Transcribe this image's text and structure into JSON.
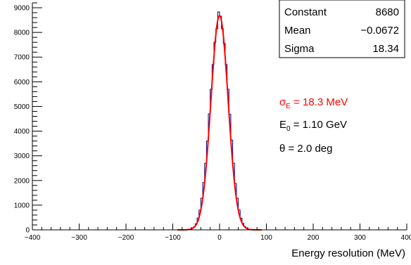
{
  "chart_data": {
    "type": "histogram",
    "xlabel": "Energy resolution (MeV)",
    "ylabel": "",
    "xlim": [
      -400,
      400
    ],
    "ylim": [
      0,
      9200
    ],
    "x_ticks": [
      -400,
      -300,
      -200,
      -100,
      0,
      100,
      200,
      300,
      400
    ],
    "y_ticks": [
      0,
      1000,
      2000,
      3000,
      4000,
      5000,
      6000,
      7000,
      8000,
      9000
    ],
    "x_tick_labels": [
      "−400",
      "−300",
      "−200",
      "−100",
      "0",
      "100",
      "200",
      "300",
      "400"
    ],
    "y_tick_labels": [
      "0",
      "1000",
      "2000",
      "3000",
      "4000",
      "5000",
      "6000",
      "7000",
      "8000",
      "9000"
    ],
    "grid": false,
    "series": [
      {
        "kind": "histogram",
        "color": "#00008b",
        "bin_width": 4,
        "bins": [
          [
            -72,
            4
          ],
          [
            -68,
            10
          ],
          [
            -64,
            25
          ],
          [
            -60,
            60
          ],
          [
            -56,
            120
          ],
          [
            -52,
            250
          ],
          [
            -48,
            480
          ],
          [
            -44,
            800
          ],
          [
            -40,
            1280
          ],
          [
            -36,
            1920
          ],
          [
            -32,
            2700
          ],
          [
            -28,
            3600
          ],
          [
            -24,
            4700
          ],
          [
            -20,
            5700
          ],
          [
            -16,
            6700
          ],
          [
            -12,
            7600
          ],
          [
            -8,
            8150
          ],
          [
            -4,
            8830
          ],
          [
            0,
            8660
          ],
          [
            4,
            8150
          ],
          [
            8,
            7550
          ],
          [
            12,
            6700
          ],
          [
            16,
            5700
          ],
          [
            20,
            4680
          ],
          [
            24,
            3640
          ],
          [
            28,
            2700
          ],
          [
            32,
            1880
          ],
          [
            36,
            1280
          ],
          [
            40,
            800
          ],
          [
            44,
            470
          ],
          [
            48,
            260
          ],
          [
            52,
            130
          ],
          [
            56,
            60
          ],
          [
            60,
            25
          ],
          [
            64,
            10
          ],
          [
            68,
            4
          ]
        ]
      },
      {
        "kind": "gaussian-fit",
        "color": "#ff0000",
        "constant": 8680,
        "mean": -0.0672,
        "sigma": 18.34
      }
    ],
    "stats_box": {
      "rows": [
        {
          "label": "Constant",
          "value": "8680"
        },
        {
          "label": "Mean",
          "value": "−0.0672"
        },
        {
          "label": "Sigma",
          "value": "18.34"
        }
      ]
    },
    "annotations": {
      "sigma_symbol": "σ",
      "sigma_sub": "E",
      "sigma_value": " = 18.3 MeV",
      "sigma_color": "#ff0000",
      "e0_symbol": "E",
      "e0_sub": "0",
      "e0_value": " = 1.10 GeV",
      "theta_text": "θ = 2.0 deg"
    }
  }
}
